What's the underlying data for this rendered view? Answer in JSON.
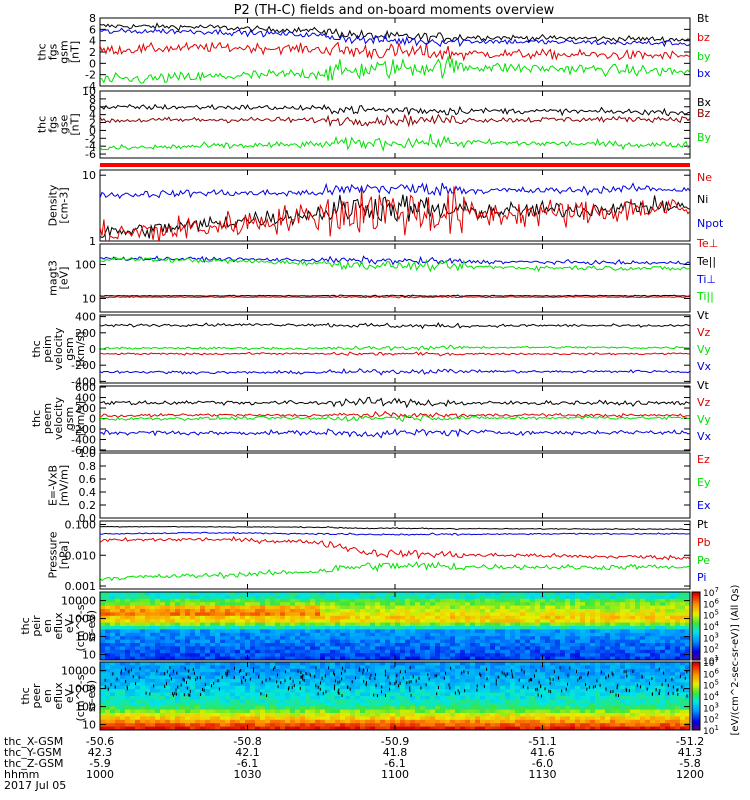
{
  "title": "P2 (TH-C) fields and on-board moments overview",
  "chart_data": [
    {
      "panel": "fgs_gsm",
      "type": "line",
      "ylabel": [
        "thc",
        "fgs",
        "gsm",
        "[nT]"
      ],
      "yticks": [
        "-4",
        "-2",
        "0",
        "2",
        "4",
        "6",
        "8"
      ],
      "ylim": [
        -4,
        8
      ],
      "legend": [
        "Bt",
        "bz",
        "by",
        "bx"
      ],
      "series": [
        {
          "name": "Bt",
          "color": "#000000",
          "values": [
            6.6,
            6.5,
            6.4,
            6.0,
            5.8,
            4.8,
            4.6,
            4.6,
            4.5,
            4.4,
            4.3,
            4.2
          ],
          "noise": 0.35
        },
        {
          "name": "bz",
          "color": "#e00000",
          "values": [
            2.3,
            2.6,
            2.8,
            2.7,
            2.5,
            2.1,
            1.9,
            1.7,
            1.6,
            1.5,
            1.4,
            1.3
          ],
          "noise": 0.6
        },
        {
          "name": "by",
          "color": "#00e000",
          "values": [
            -3.0,
            -2.7,
            -2.4,
            -2.1,
            -1.8,
            -1.1,
            -0.6,
            -0.6,
            -0.9,
            -1.0,
            -1.3,
            -1.5
          ],
          "noise": 0.7
        },
        {
          "name": "bx",
          "color": "#0000e0",
          "values": [
            5.6,
            5.7,
            5.6,
            5.3,
            5.0,
            4.1,
            3.9,
            3.9,
            3.8,
            3.7,
            3.6,
            3.5
          ],
          "noise": 0.35
        }
      ]
    },
    {
      "panel": "fgs_gse",
      "type": "line",
      "ylabel": [
        "thc",
        "fgs",
        "gse",
        "[nT]"
      ],
      "yticks": [
        "-6",
        "-4",
        "-2",
        "0",
        "2",
        "4",
        "6",
        "8",
        "10"
      ],
      "ylim": [
        -7,
        10
      ],
      "legend": [
        "Bx",
        "Bz",
        "By"
      ],
      "series": [
        {
          "name": "Bx",
          "color": "#000000",
          "values": [
            5.8,
            5.9,
            5.9,
            5.8,
            5.6,
            5.2,
            5.1,
            5.0,
            4.9,
            4.8,
            4.7,
            4.6
          ],
          "noise": 0.5
        },
        {
          "name": "Bz",
          "color": "#8b0000",
          "values": [
            2.5,
            2.6,
            2.7,
            2.7,
            2.6,
            2.5,
            2.6,
            2.7,
            2.7,
            2.8,
            2.9,
            2.9
          ],
          "noise": 0.5
        },
        {
          "name": "By",
          "color": "#00e000",
          "values": [
            -4.6,
            -4.3,
            -4.0,
            -3.8,
            -3.6,
            -3.2,
            -3.0,
            -3.1,
            -3.3,
            -3.4,
            -3.6,
            -3.7
          ],
          "noise": 0.6
        }
      ]
    },
    {
      "panel": "state_bar",
      "type": "bar",
      "color": "#ff0000",
      "values": [
        1
      ]
    },
    {
      "panel": "density",
      "type": "line",
      "scale": "log",
      "ylabel": [
        "Density",
        "[cm-3]"
      ],
      "yticks": [
        "1",
        "10"
      ],
      "ylim": [
        1,
        12
      ],
      "legend": [
        "Ne",
        "Ni",
        "Npot"
      ],
      "legend_colors": [
        "#e00000",
        "#000000",
        "#0000e0"
      ],
      "series": [
        {
          "name": "Npot",
          "color": "#0000e0",
          "values": [
            5.0,
            5.2,
            5.4,
            5.3,
            5.4,
            6.4,
            6.2,
            5.9,
            5.8,
            5.9,
            6.3,
            6.0
          ],
          "noise": 0.08
        },
        {
          "name": "Ni",
          "color": "#000000",
          "values": [
            1.3,
            1.5,
            1.8,
            2.2,
            2.6,
            3.4,
            3.0,
            2.8,
            2.9,
            3.0,
            3.4,
            3.3
          ],
          "noise": 0.18
        },
        {
          "name": "Ne",
          "color": "#e00000",
          "values": [
            1.2,
            1.4,
            1.6,
            2.0,
            2.4,
            3.0,
            2.7,
            2.5,
            2.6,
            2.7,
            3.1,
            3.0
          ],
          "noise": 0.3
        }
      ]
    },
    {
      "panel": "temperature",
      "type": "line",
      "scale": "log",
      "ylabel": [
        "magt3",
        "[eV]"
      ],
      "yticks": [
        "10",
        "100"
      ],
      "ylim": [
        4,
        400
      ],
      "legend": [
        "Te⊥",
        "Te||",
        "Ti⊥",
        "Ti||"
      ],
      "legend_colors": [
        "#e00000",
        "#000000",
        "#0000e0",
        "#00e000"
      ],
      "series": [
        {
          "name": "Ti⊥",
          "color": "#0000e0",
          "values": [
            150,
            148,
            145,
            140,
            135,
            130,
            125,
            120,
            118,
            115,
            112,
            110
          ],
          "noise": 0.08
        },
        {
          "name": "Ti||",
          "color": "#00e000",
          "values": [
            145,
            140,
            130,
            120,
            110,
            95,
            90,
            85,
            80,
            80,
            78,
            75
          ],
          "noise": 0.1
        },
        {
          "name": "Te||",
          "color": "#000000",
          "values": [
            12,
            12,
            12,
            12,
            12,
            12,
            12,
            12,
            12,
            12,
            12,
            12
          ],
          "noise": 0.02
        },
        {
          "name": "Te⊥",
          "color": "#e00000",
          "values": [
            11,
            11,
            11,
            11,
            11,
            11,
            11,
            11,
            11,
            11,
            11,
            11
          ],
          "noise": 0.02
        }
      ]
    },
    {
      "panel": "peim_velocity",
      "type": "line",
      "ylabel": [
        "thc",
        "peim",
        "velocity",
        "gsm",
        "[km/s]"
      ],
      "yticks": [
        "-400",
        "-200",
        "0",
        "200",
        "400"
      ],
      "ylim": [
        -420,
        420
      ],
      "legend": [
        "Vt",
        "Vz",
        "Vy",
        "Vx"
      ],
      "series": [
        {
          "name": "Vt",
          "color": "#000000",
          "values": [
            290,
            295,
            300,
            300,
            300,
            290,
            285,
            285,
            290,
            290,
            285,
            290
          ],
          "noise": 12
        },
        {
          "name": "Vz",
          "color": "#e00000",
          "values": [
            -60,
            -60,
            -60,
            -55,
            -60,
            -60,
            -60,
            -60,
            -60,
            -60,
            -60,
            -55
          ],
          "noise": 8
        },
        {
          "name": "Vy",
          "color": "#00e000",
          "values": [
            10,
            10,
            10,
            10,
            5,
            10,
            15,
            20,
            20,
            20,
            15,
            20
          ],
          "noise": 10
        },
        {
          "name": "Vx",
          "color": "#0000e0",
          "values": [
            -280,
            -285,
            -290,
            -290,
            -290,
            -280,
            -275,
            -275,
            -280,
            -280,
            -275,
            -280
          ],
          "noise": 12
        }
      ]
    },
    {
      "panel": "peem_velocity",
      "type": "line",
      "ylabel": [
        "thc",
        "peem",
        "velocity",
        "gsm",
        "[km/s]"
      ],
      "yticks": [
        "-600",
        "-400",
        "-200",
        "0",
        "200",
        "400",
        "600"
      ],
      "ylim": [
        -620,
        620
      ],
      "legend": [
        "Vt",
        "Vz",
        "Vy",
        "Vx"
      ],
      "series": [
        {
          "name": "Vt",
          "color": "#000000",
          "values": [
            300,
            300,
            310,
            300,
            300,
            320,
            300,
            290,
            300,
            300,
            290,
            300
          ],
          "noise": 30
        },
        {
          "name": "Vz",
          "color": "#e00000",
          "values": [
            50,
            60,
            70,
            60,
            60,
            70,
            60,
            60,
            70,
            60,
            60,
            60
          ],
          "noise": 20
        },
        {
          "name": "Vy",
          "color": "#00e000",
          "values": [
            -10,
            0,
            0,
            10,
            0,
            10,
            20,
            10,
            10,
            20,
            10,
            10
          ],
          "noise": 22
        },
        {
          "name": "Vx",
          "color": "#0000e0",
          "values": [
            -270,
            -270,
            -280,
            -270,
            -270,
            -290,
            -270,
            -260,
            -270,
            -270,
            -260,
            -270
          ],
          "noise": 30
        }
      ]
    },
    {
      "panel": "efield",
      "type": "line",
      "ylabel": [
        "E=-VxB",
        "[mV/m]"
      ],
      "yticks": [
        "0.0",
        "0.2",
        "0.4",
        "0.6",
        "0.8",
        "1.0"
      ],
      "ylim": [
        0,
        1
      ],
      "legend": [
        "Ez",
        "Ey",
        "Ex"
      ],
      "legend_colors": [
        "#e00000",
        "#00e000",
        "#0000e0"
      ],
      "series": []
    },
    {
      "panel": "pressure",
      "type": "line",
      "scale": "log",
      "ylabel": [
        "Pressure",
        "[nPa]"
      ],
      "yticks": [
        "0.001",
        "0.010",
        "0.100"
      ],
      "ylim": [
        0.0008,
        0.13
      ],
      "legend": [
        "Pt",
        "Pb",
        "Pe",
        "Pi"
      ],
      "legend_colors": [
        "#000000",
        "#e00000",
        "#00e000",
        "#0000e0"
      ],
      "series": [
        {
          "name": "Pt",
          "color": "#000000",
          "values": [
            0.085,
            0.085,
            0.084,
            0.083,
            0.082,
            0.075,
            0.074,
            0.073,
            0.072,
            0.072,
            0.071,
            0.07
          ],
          "noise": 0.02
        },
        {
          "name": "Pi",
          "color": "#0000e0",
          "values": [
            0.05,
            0.052,
            0.054,
            0.052,
            0.05,
            0.047,
            0.047,
            0.048,
            0.049,
            0.05,
            0.05,
            0.05
          ],
          "noise": 0.03
        },
        {
          "name": "Pb",
          "color": "#e00000",
          "values": [
            0.03,
            0.032,
            0.033,
            0.03,
            0.027,
            0.012,
            0.011,
            0.01,
            0.01,
            0.009,
            0.009,
            0.008
          ],
          "noise": 0.1
        },
        {
          "name": "Pe",
          "color": "#00e000",
          "values": [
            0.0018,
            0.002,
            0.0022,
            0.0025,
            0.003,
            0.0045,
            0.0045,
            0.0042,
            0.0042,
            0.004,
            0.0042,
            0.004
          ],
          "noise": 0.12
        }
      ]
    },
    {
      "panel": "peir_spectrogram",
      "type": "heatmap",
      "scale": "log",
      "ylabel": [
        "thc",
        "peir",
        "en",
        "eflux",
        "eV",
        "(cm^2-s-",
        "sr-eV)"
      ],
      "yticks": [
        "10",
        "100",
        "1000",
        "10000"
      ],
      "ylim": [
        5,
        30000
      ],
      "zlim": [
        1,
        7
      ],
      "colorbar_label": "[eV/(cm^2-sec-sr-eV)] (All Qs)"
    },
    {
      "panel": "peer_spectrogram",
      "type": "heatmap",
      "scale": "log",
      "ylabel": [
        "thc",
        "peer",
        "en",
        "eflux",
        "eV",
        "(cm^2-s-",
        "sr-eV)"
      ],
      "yticks": [
        "10",
        "100",
        "1000",
        "10000"
      ],
      "ylim": [
        5,
        30000
      ],
      "zlim": [
        1,
        7
      ],
      "colorbar_label": "[eV/(cm^2-sec-sr-eV)] (All Qs)"
    }
  ],
  "colorbar": {
    "ticks": [
      "10^1",
      "10^2",
      "10^3",
      "10^4",
      "10^5",
      "10^6",
      "10^7"
    ],
    "label": "[eV/(cm^2-sec-sr-eV)] (All Qs)"
  },
  "xaxis": {
    "row_labels": [
      "thc_X-GSM",
      "thc_Y-GSM",
      "thc_Z-GSM",
      "hhmm",
      "2017 Jul 05"
    ],
    "columns": [
      [
        "-50.6",
        "42.3",
        "-5.9",
        "1000"
      ],
      [
        "-50.8",
        "42.1",
        "-6.1",
        "1030"
      ],
      [
        "-50.9",
        "41.8",
        "-6.1",
        "1100"
      ],
      [
        "-51.1",
        "41.6",
        "-6.0",
        "1130"
      ],
      [
        "-51.2",
        "41.3",
        "-5.8",
        "1200"
      ]
    ]
  }
}
